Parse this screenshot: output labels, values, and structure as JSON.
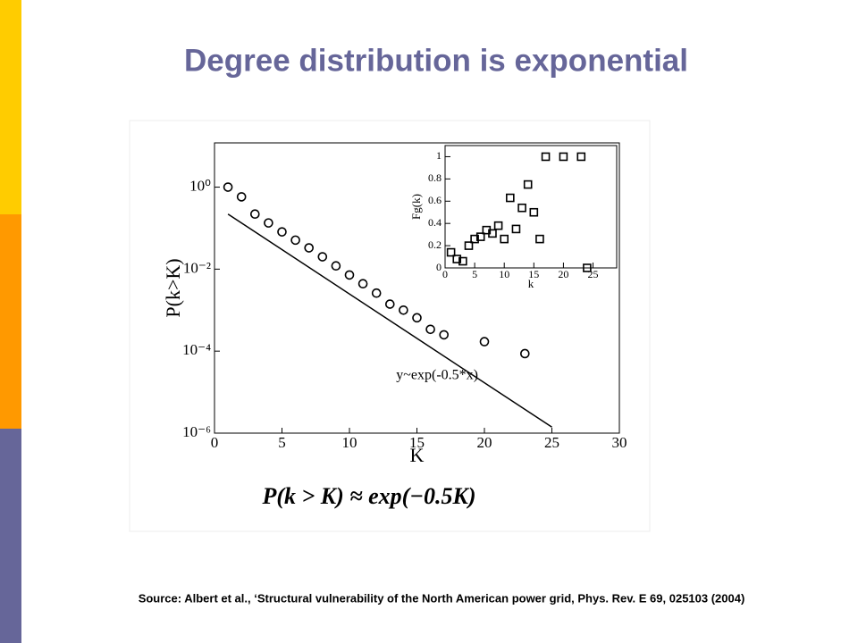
{
  "slide": {
    "title": "Degree distribution is exponential",
    "formula": "P(k > K) ≈ exp(−0.5K)",
    "source": "Source:  Albert et al., ‘Structural vulnerability of the North American power grid, Phys. Rev. E 69, 025103 (2004)"
  },
  "chart_data": [
    {
      "type": "scatter",
      "xlabel": "K",
      "ylabel": "P(k>K)",
      "log_y": true,
      "xlim": [
        0,
        30
      ],
      "xticks": [
        0,
        5,
        10,
        15,
        20,
        25,
        30
      ],
      "ylim": [
        1e-06,
        12
      ],
      "yticks": [
        {
          "value": 1,
          "label": "10⁰"
        },
        {
          "value": 0.01,
          "label": "10⁻²"
        },
        {
          "value": 0.0001,
          "label": "10⁻⁴"
        },
        {
          "value": 1e-06,
          "label": "10⁻⁶"
        }
      ],
      "annotation": "y~exp(-0.5*x)",
      "series": [
        {
          "marker": "circle",
          "color": "#000000",
          "x": [
            1,
            2,
            3,
            4,
            5,
            6,
            7,
            8,
            9,
            10,
            11,
            12,
            13,
            14,
            15,
            16,
            17,
            20,
            23
          ],
          "values": [
            1,
            0.58,
            0.22,
            0.134,
            0.081,
            0.051,
            0.033,
            0.02,
            0.012,
            0.0072,
            0.0044,
            0.0026,
            0.0014,
            0.001,
            0.00065,
            0.00034,
            0.00025,
            0.00017,
            8.7e-05
          ]
        },
        {
          "marker": "line",
          "color": "#000000",
          "x": [
            1,
            25
          ],
          "values": [
            0.22,
            1.4e-06
          ]
        }
      ]
    },
    {
      "type": "scatter",
      "xlabel": "k",
      "ylabel": "Fg(k)",
      "xlim": [
        0,
        29
      ],
      "xticks": [
        0,
        5,
        10,
        15,
        20,
        25
      ],
      "ylim": [
        0,
        1.1
      ],
      "yticks": [
        0,
        0.2,
        0.4,
        0.6,
        0.8,
        1
      ],
      "series": [
        {
          "marker": "square",
          "color": "#000000",
          "x": [
            1,
            2,
            3,
            4,
            5,
            6,
            7,
            8,
            9,
            10,
            11,
            12,
            13,
            14,
            15,
            16,
            17,
            20,
            23,
            24
          ],
          "values": [
            0.14,
            0.08,
            0.06,
            0.2,
            0.26,
            0.28,
            0.34,
            0.31,
            0.38,
            0.26,
            0.63,
            0.35,
            0.54,
            0.75,
            0.5,
            0.26,
            1,
            1,
            1,
            0
          ]
        }
      ]
    }
  ]
}
